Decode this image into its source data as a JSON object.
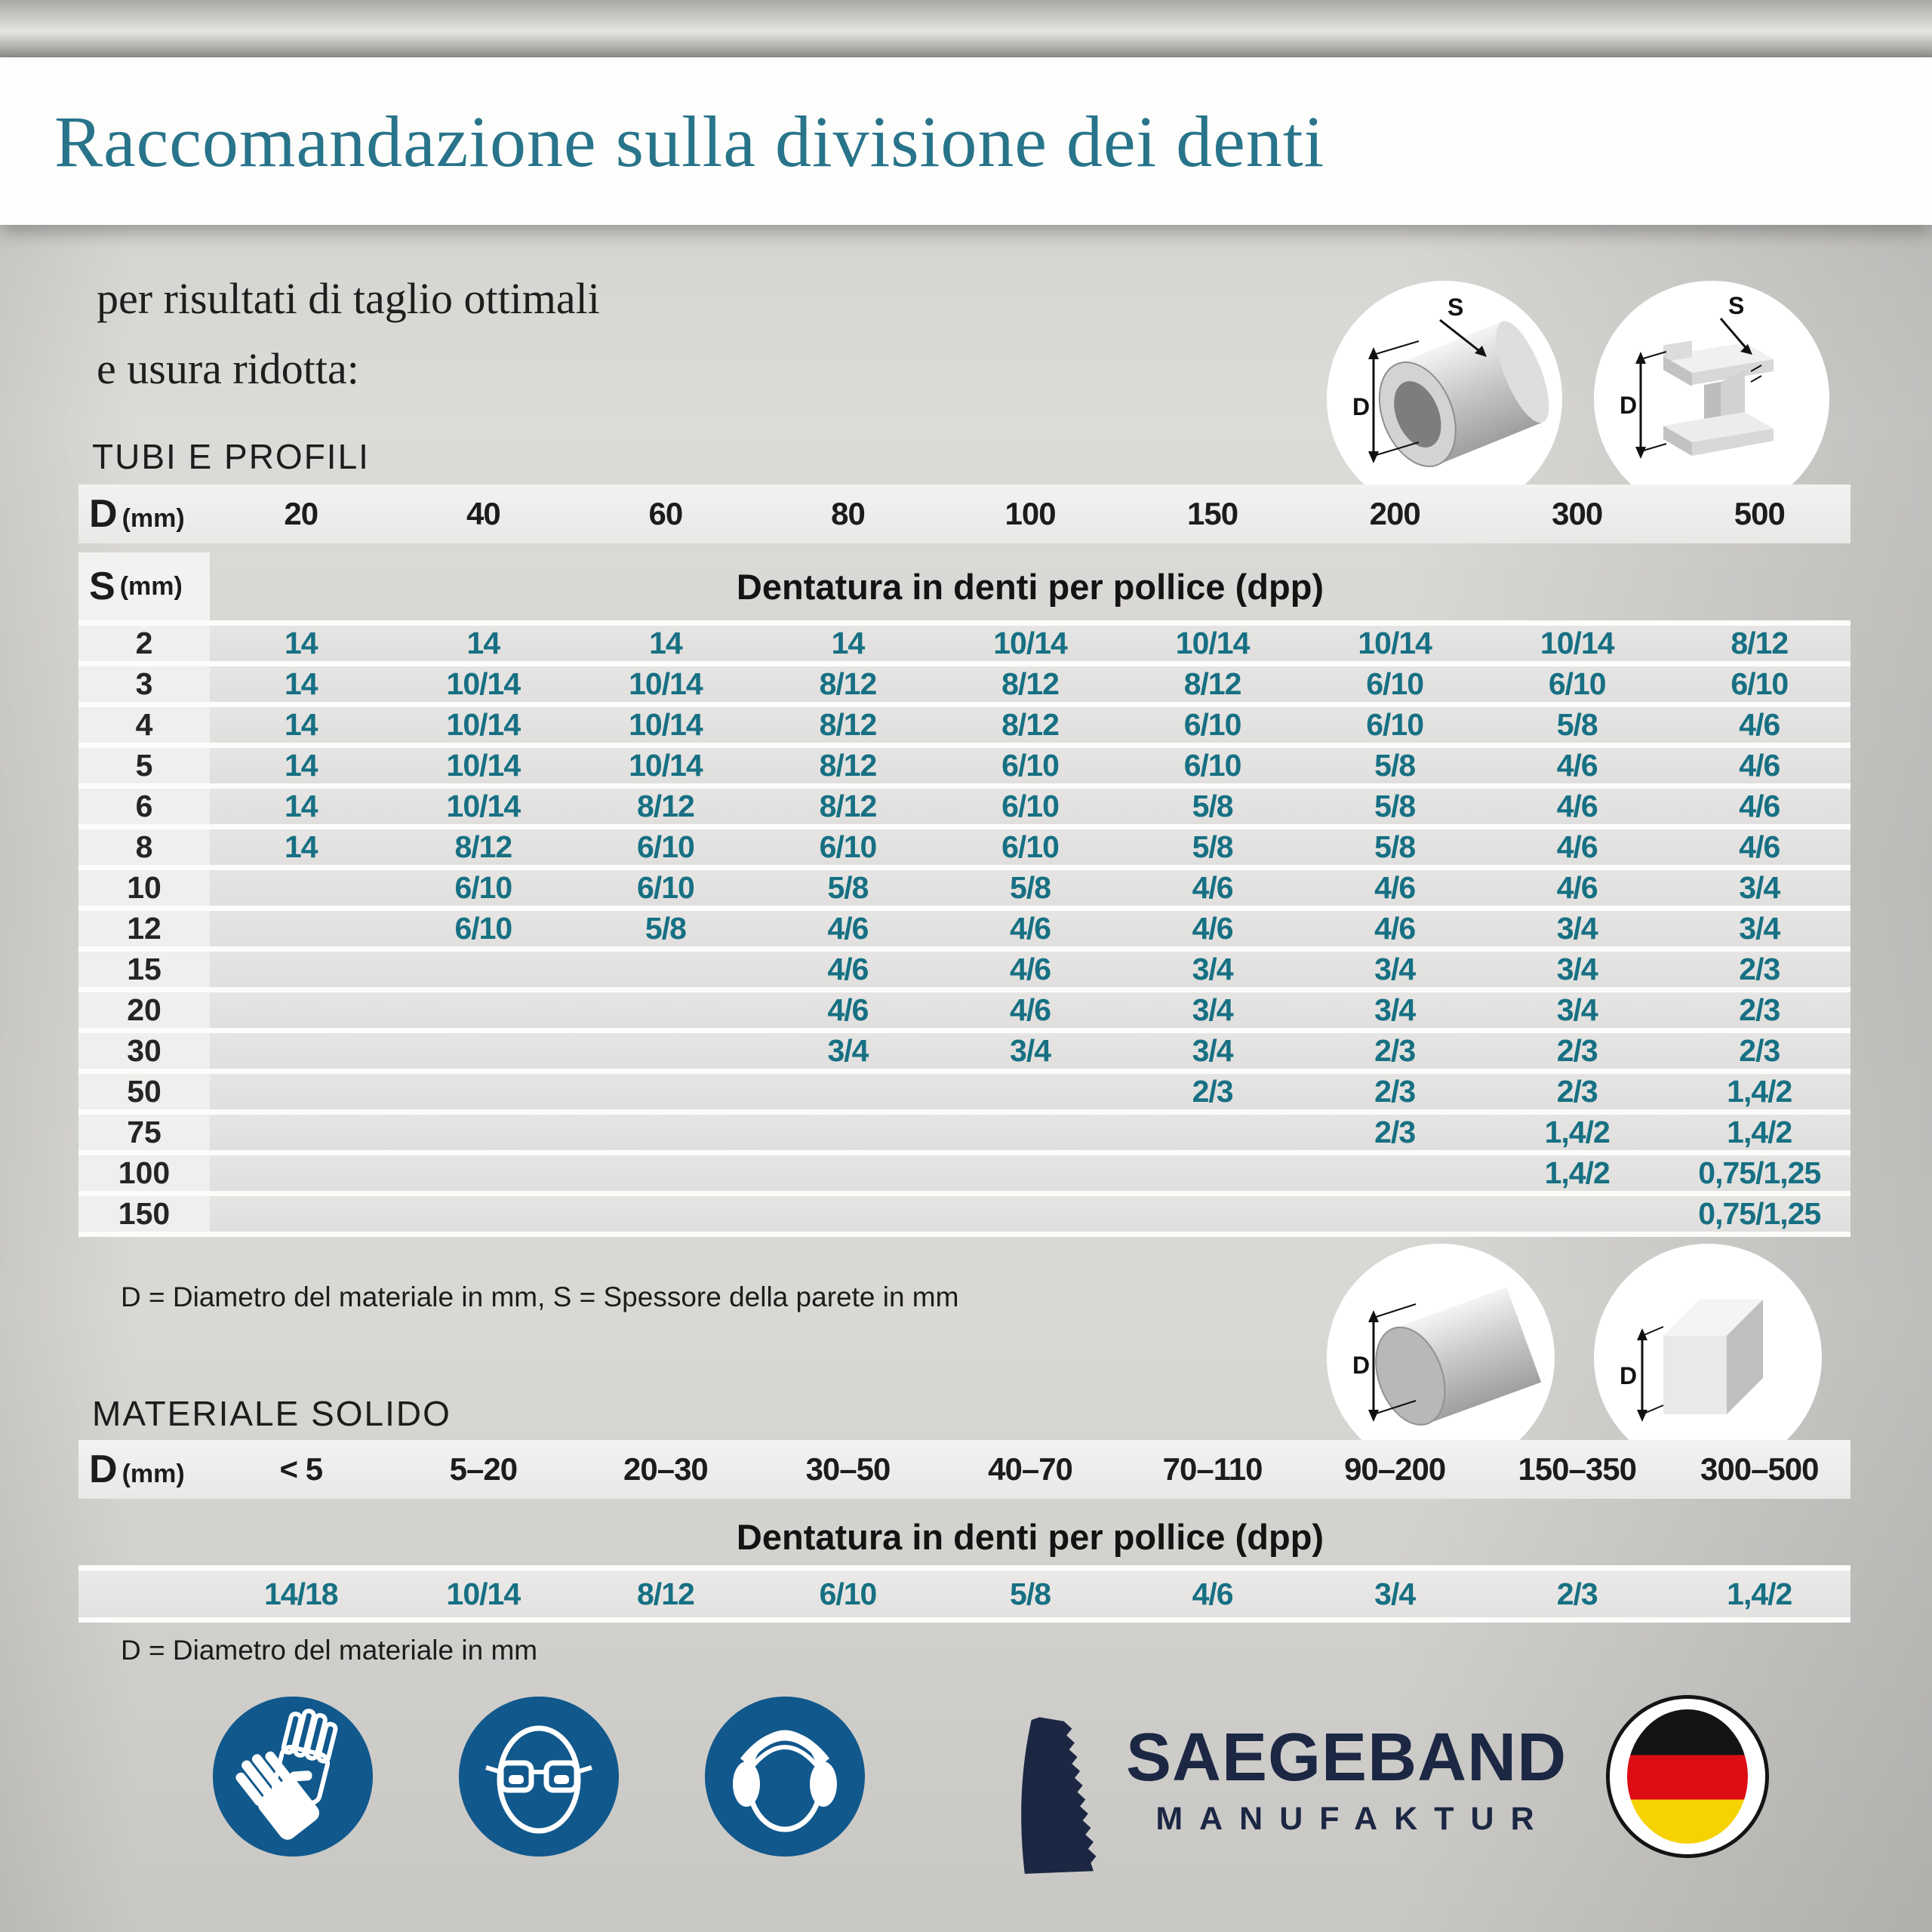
{
  "title": "Raccomandazione sulla divisione dei denti",
  "subtitle_line1": "per risultati di taglio ottimali",
  "subtitle_line2": "e usura ridotta:",
  "diagram_labels": {
    "d": "D",
    "s": "S"
  },
  "tubes_section": {
    "label": "TUBI E PROFILI",
    "d_label": "D",
    "d_unit": "(mm)",
    "s_label": "S",
    "s_unit": "(mm)",
    "dpp_header": "Dentatura in denti per pollice (dpp)",
    "columns": [
      "20",
      "40",
      "60",
      "80",
      "100",
      "150",
      "200",
      "300",
      "500"
    ],
    "rows": [
      {
        "s": "2",
        "values": [
          "14",
          "14",
          "14",
          "14",
          "10/14",
          "10/14",
          "10/14",
          "10/14",
          "8/12"
        ]
      },
      {
        "s": "3",
        "values": [
          "14",
          "10/14",
          "10/14",
          "8/12",
          "8/12",
          "8/12",
          "6/10",
          "6/10",
          "6/10"
        ]
      },
      {
        "s": "4",
        "values": [
          "14",
          "10/14",
          "10/14",
          "8/12",
          "8/12",
          "6/10",
          "6/10",
          "5/8",
          "4/6"
        ]
      },
      {
        "s": "5",
        "values": [
          "14",
          "10/14",
          "10/14",
          "8/12",
          "6/10",
          "6/10",
          "5/8",
          "4/6",
          "4/6"
        ]
      },
      {
        "s": "6",
        "values": [
          "14",
          "10/14",
          "8/12",
          "8/12",
          "6/10",
          "5/8",
          "5/8",
          "4/6",
          "4/6"
        ]
      },
      {
        "s": "8",
        "values": [
          "14",
          "8/12",
          "6/10",
          "6/10",
          "6/10",
          "5/8",
          "5/8",
          "4/6",
          "4/6"
        ]
      },
      {
        "s": "10",
        "values": [
          "",
          "6/10",
          "6/10",
          "5/8",
          "5/8",
          "4/6",
          "4/6",
          "4/6",
          "3/4"
        ]
      },
      {
        "s": "12",
        "values": [
          "",
          "6/10",
          "5/8",
          "4/6",
          "4/6",
          "4/6",
          "4/6",
          "3/4",
          "3/4"
        ]
      },
      {
        "s": "15",
        "values": [
          "",
          "",
          "",
          "4/6",
          "4/6",
          "3/4",
          "3/4",
          "3/4",
          "2/3"
        ]
      },
      {
        "s": "20",
        "values": [
          "",
          "",
          "",
          "4/6",
          "4/6",
          "3/4",
          "3/4",
          "3/4",
          "2/3"
        ]
      },
      {
        "s": "30",
        "values": [
          "",
          "",
          "",
          "3/4",
          "3/4",
          "3/4",
          "2/3",
          "2/3",
          "2/3"
        ]
      },
      {
        "s": "50",
        "values": [
          "",
          "",
          "",
          "",
          "",
          "2/3",
          "2/3",
          "2/3",
          "1,4/2"
        ]
      },
      {
        "s": "75",
        "values": [
          "",
          "",
          "",
          "",
          "",
          "",
          "2/3",
          "1,4/2",
          "1,4/2"
        ]
      },
      {
        "s": "100",
        "values": [
          "",
          "",
          "",
          "",
          "",
          "",
          "",
          "1,4/2",
          "0,75/1,25"
        ]
      },
      {
        "s": "150",
        "values": [
          "",
          "",
          "",
          "",
          "",
          "",
          "",
          "",
          "0,75/1,25"
        ]
      }
    ],
    "footnote": "D = Diametro del materiale in mm, S = Spessore della parete in mm"
  },
  "solid_section": {
    "label": "MATERIALE SOLIDO",
    "d_label": "D",
    "d_unit": "(mm)",
    "dpp_header": "Dentatura in denti per pollice (dpp)",
    "columns": [
      "< 5",
      "5–20",
      "20–30",
      "30–50",
      "40–70",
      "70–110",
      "90–200",
      "150–350",
      "300–500"
    ],
    "values": [
      "14/18",
      "10/14",
      "8/12",
      "6/10",
      "5/8",
      "4/6",
      "3/4",
      "2/3",
      "1,4/2"
    ],
    "footnote": "D = Diametro del materiale in mm"
  },
  "brand": {
    "name": "SAEGEBAND",
    "sub": "MANUFAKTUR"
  },
  "icons": {
    "tube": "tube-cross-section-icon",
    "profile": "h-profile-cross-section-icon",
    "round_bar": "round-bar-icon",
    "square_bar": "square-bar-icon",
    "gloves": "wear-gloves-icon",
    "glasses": "wear-eye-protection-icon",
    "ear": "wear-ear-protection-icon",
    "saw_band": "saw-band-logo-icon",
    "flag": "german-flag-icon"
  },
  "colors": {
    "title_teal": "#28748a",
    "value_teal": "#177083",
    "safety_blue": "#11588c",
    "brand_navy": "#1b2743",
    "flag_black": "#141414",
    "flag_red": "#dd0c15",
    "flag_gold": "#f6d200"
  }
}
